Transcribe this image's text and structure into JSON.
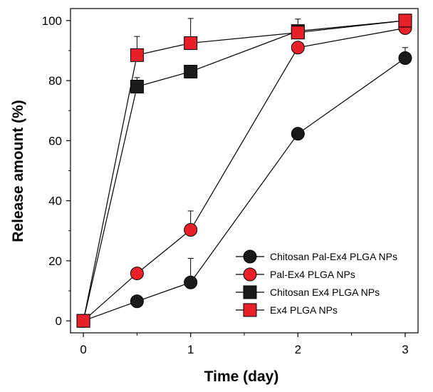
{
  "chart_data": {
    "type": "line",
    "title": "",
    "xlabel": "Time (day)",
    "ylabel": "Release amount (%)",
    "xlim": [
      -0.12,
      3.12
    ],
    "ylim": [
      -4,
      104
    ],
    "xticks": [
      0,
      1,
      2,
      3
    ],
    "xtick_labels": [
      "0",
      "1",
      "2",
      "3"
    ],
    "xminor_ticks": [
      0.5,
      1.5,
      2.5
    ],
    "yticks": [
      0,
      20,
      40,
      60,
      80,
      100
    ],
    "ytick_labels": [
      "0",
      "20",
      "40",
      "60",
      "80",
      "100"
    ],
    "grid": false,
    "legend_position": "bottom-right",
    "x": [
      0,
      0.5,
      1,
      2,
      3
    ],
    "series": [
      {
        "name": "Chitosan Pal-Ex4 PLGA NPs",
        "marker": "circle",
        "fill": "#1a1a1a",
        "values": [
          0,
          6.5,
          12.8,
          62.3,
          87.5
        ],
        "error": [
          0,
          1.5,
          8.0,
          0,
          3.5
        ]
      },
      {
        "name": "Pal-Ex4 PLGA NPs",
        "marker": "circle",
        "fill": "#e8202a",
        "values": [
          0,
          15.8,
          30.3,
          91.0,
          97.5
        ],
        "error": [
          0,
          0,
          6.3,
          1.5,
          2.5
        ]
      },
      {
        "name": "Chitosan Ex4 PLGA NPs",
        "marker": "square",
        "fill": "#1a1a1a",
        "values": [
          0,
          78.0,
          83.0,
          96.5,
          100.0
        ],
        "error": [
          0,
          3.0,
          0,
          4.0,
          0
        ]
      },
      {
        "name": "Ex4 PLGA NPs",
        "marker": "square",
        "fill": "#e8202a",
        "values": [
          0,
          88.5,
          92.5,
          96.0,
          100.0
        ],
        "error": [
          0,
          6.2,
          8.2,
          2.5,
          0
        ]
      }
    ]
  }
}
